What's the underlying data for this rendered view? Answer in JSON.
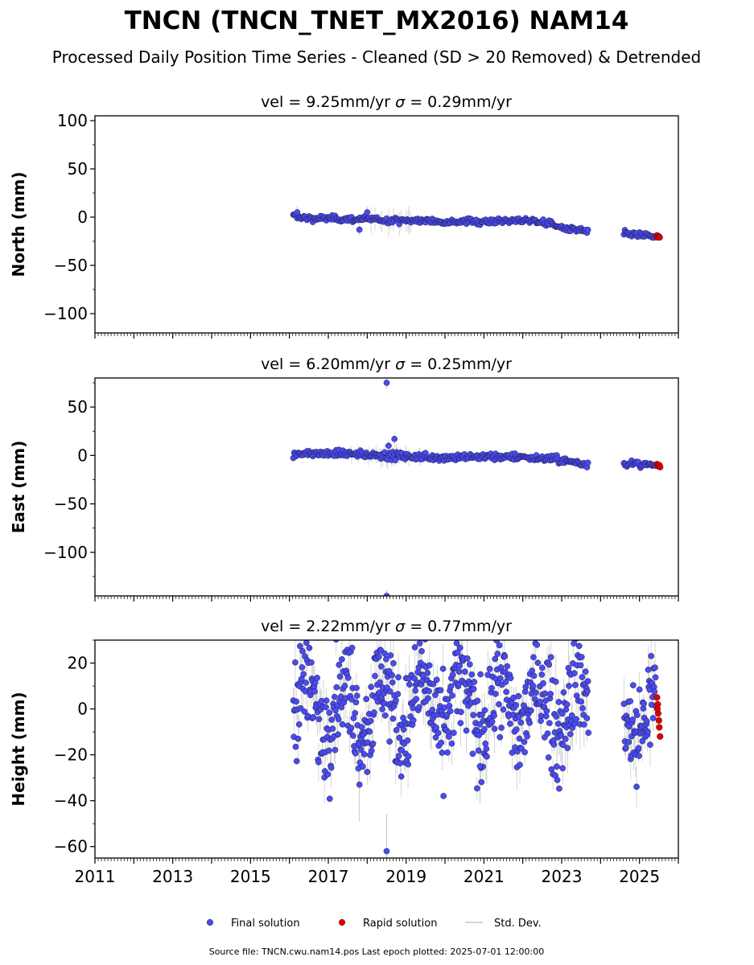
{
  "title": "TNCN (TNCN_TNET_MX2016) NAM14",
  "subtitle": "Processed Daily Position Time Series - Cleaned (SD > 20 Removed) & Detrended",
  "footer": "Source file: TNCN.cwu.nam14.pos  Last epoch plotted: 2025-07-01 12:00:00",
  "colors": {
    "final": "#4B4BF0",
    "rapid": "#E00000",
    "std": "#a0a0a0"
  },
  "chart_data": [
    {
      "type": "scatter",
      "ylabel": "North (mm)",
      "vel_text": "vel = 9.25mm/yr",
      "sigma_text": "= 0.29mm/yr",
      "xlim": [
        2011.0,
        2026.0
      ],
      "ylim": [
        -120,
        105
      ],
      "yticks": [
        100,
        50,
        0,
        -50,
        -100
      ],
      "yticklabels": [
        "100",
        "50",
        "0",
        "−50",
        "−100"
      ],
      "final_trend": [
        [
          2016.1,
          1.0
        ],
        [
          2016.5,
          -1.0
        ],
        [
          2017.5,
          -2.0
        ],
        [
          2018.5,
          -3.0
        ],
        [
          2019.5,
          -4.0
        ],
        [
          2020.5,
          -4.5
        ],
        [
          2021.5,
          -4.0
        ],
        [
          2022.3,
          -3.5
        ],
        [
          2022.7,
          -7.0
        ],
        [
          2023.1,
          -12.0
        ],
        [
          2023.65,
          -15.0
        ],
        [
          2024.6,
          -17.0
        ],
        [
          2025.4,
          -20.0
        ]
      ],
      "final_amp": 1.5,
      "final_outliers": [
        [
          2016.2,
          5
        ],
        [
          2017.8,
          -13
        ],
        [
          2018.0,
          5
        ]
      ],
      "rapid": [
        [
          2025.45,
          -19
        ],
        [
          2025.47,
          -21
        ],
        [
          2025.5,
          -20
        ],
        [
          2025.52,
          -21
        ]
      ],
      "std_clusters": [
        [
          2018.0,
          2019.3,
          15
        ]
      ]
    },
    {
      "type": "scatter",
      "ylabel": "East (mm)",
      "vel_text": "vel = 6.20mm/yr",
      "sigma_text": "= 0.25mm/yr",
      "xlim": [
        2011.0,
        2026.0
      ],
      "ylim": [
        -145,
        80
      ],
      "yticks": [
        50,
        0,
        -50,
        -100
      ],
      "yticklabels": [
        "50",
        "0",
        "−50",
        "−100"
      ],
      "final_trend": [
        [
          2016.1,
          1.5
        ],
        [
          2017.0,
          2.0
        ],
        [
          2018.0,
          1.0
        ],
        [
          2019.0,
          -1.0
        ],
        [
          2020.0,
          -2.0
        ],
        [
          2021.0,
          -1.0
        ],
        [
          2022.0,
          -1.5
        ],
        [
          2022.8,
          -4.0
        ],
        [
          2023.65,
          -9.0
        ],
        [
          2024.6,
          -8.0
        ],
        [
          2025.4,
          -11.0
        ]
      ],
      "final_amp": 1.8,
      "final_outliers": [
        [
          2018.5,
          75
        ],
        [
          2018.7,
          17
        ],
        [
          2018.55,
          10
        ],
        [
          2018.5,
          -145
        ]
      ],
      "rapid": [
        [
          2025.45,
          -9
        ],
        [
          2025.48,
          -11
        ],
        [
          2025.51,
          -10
        ],
        [
          2025.53,
          -12
        ]
      ],
      "std_clusters": [
        [
          2017.5,
          2019.4,
          10
        ]
      ]
    },
    {
      "type": "scatter",
      "ylabel": "Height (mm)",
      "vel_text": "vel = 2.22mm/yr",
      "sigma_text": "= 0.77mm/yr",
      "xlim": [
        2011.0,
        2026.0
      ],
      "ylim": [
        -65,
        30
      ],
      "yticks": [
        20,
        0,
        -20,
        -40,
        -60
      ],
      "yticklabels": [
        "20",
        "0",
        "−20",
        "−40",
        "−60"
      ],
      "final_trend": [
        [
          2016.1,
          2.0
        ],
        [
          2023.65,
          2.0
        ],
        [
          2024.6,
          -4.0
        ],
        [
          2025.4,
          -3.0
        ]
      ],
      "final_amp": 11.0,
      "final_outliers": [
        [
          2017.8,
          -33
        ],
        [
          2018.5,
          -62
        ],
        [
          2020.9,
          -25
        ]
      ],
      "rapid": [
        [
          2025.45,
          5
        ],
        [
          2025.47,
          2
        ],
        [
          2025.48,
          -2
        ],
        [
          2025.5,
          -5
        ],
        [
          2025.51,
          -8
        ],
        [
          2025.53,
          -12
        ],
        [
          2025.46,
          0
        ]
      ],
      "std_clusters": []
    }
  ],
  "xticks": [
    2011,
    2013,
    2015,
    2017,
    2019,
    2021,
    2023,
    2025
  ],
  "xticklabels": [
    "2011",
    "2013",
    "2015",
    "2017",
    "2019",
    "2021",
    "2023",
    "2025"
  ],
  "legend": [
    {
      "label": "Final solution",
      "kind": "final"
    },
    {
      "label": "Rapid solution",
      "kind": "rapid"
    },
    {
      "label": "Std. Dev.",
      "kind": "std"
    }
  ]
}
